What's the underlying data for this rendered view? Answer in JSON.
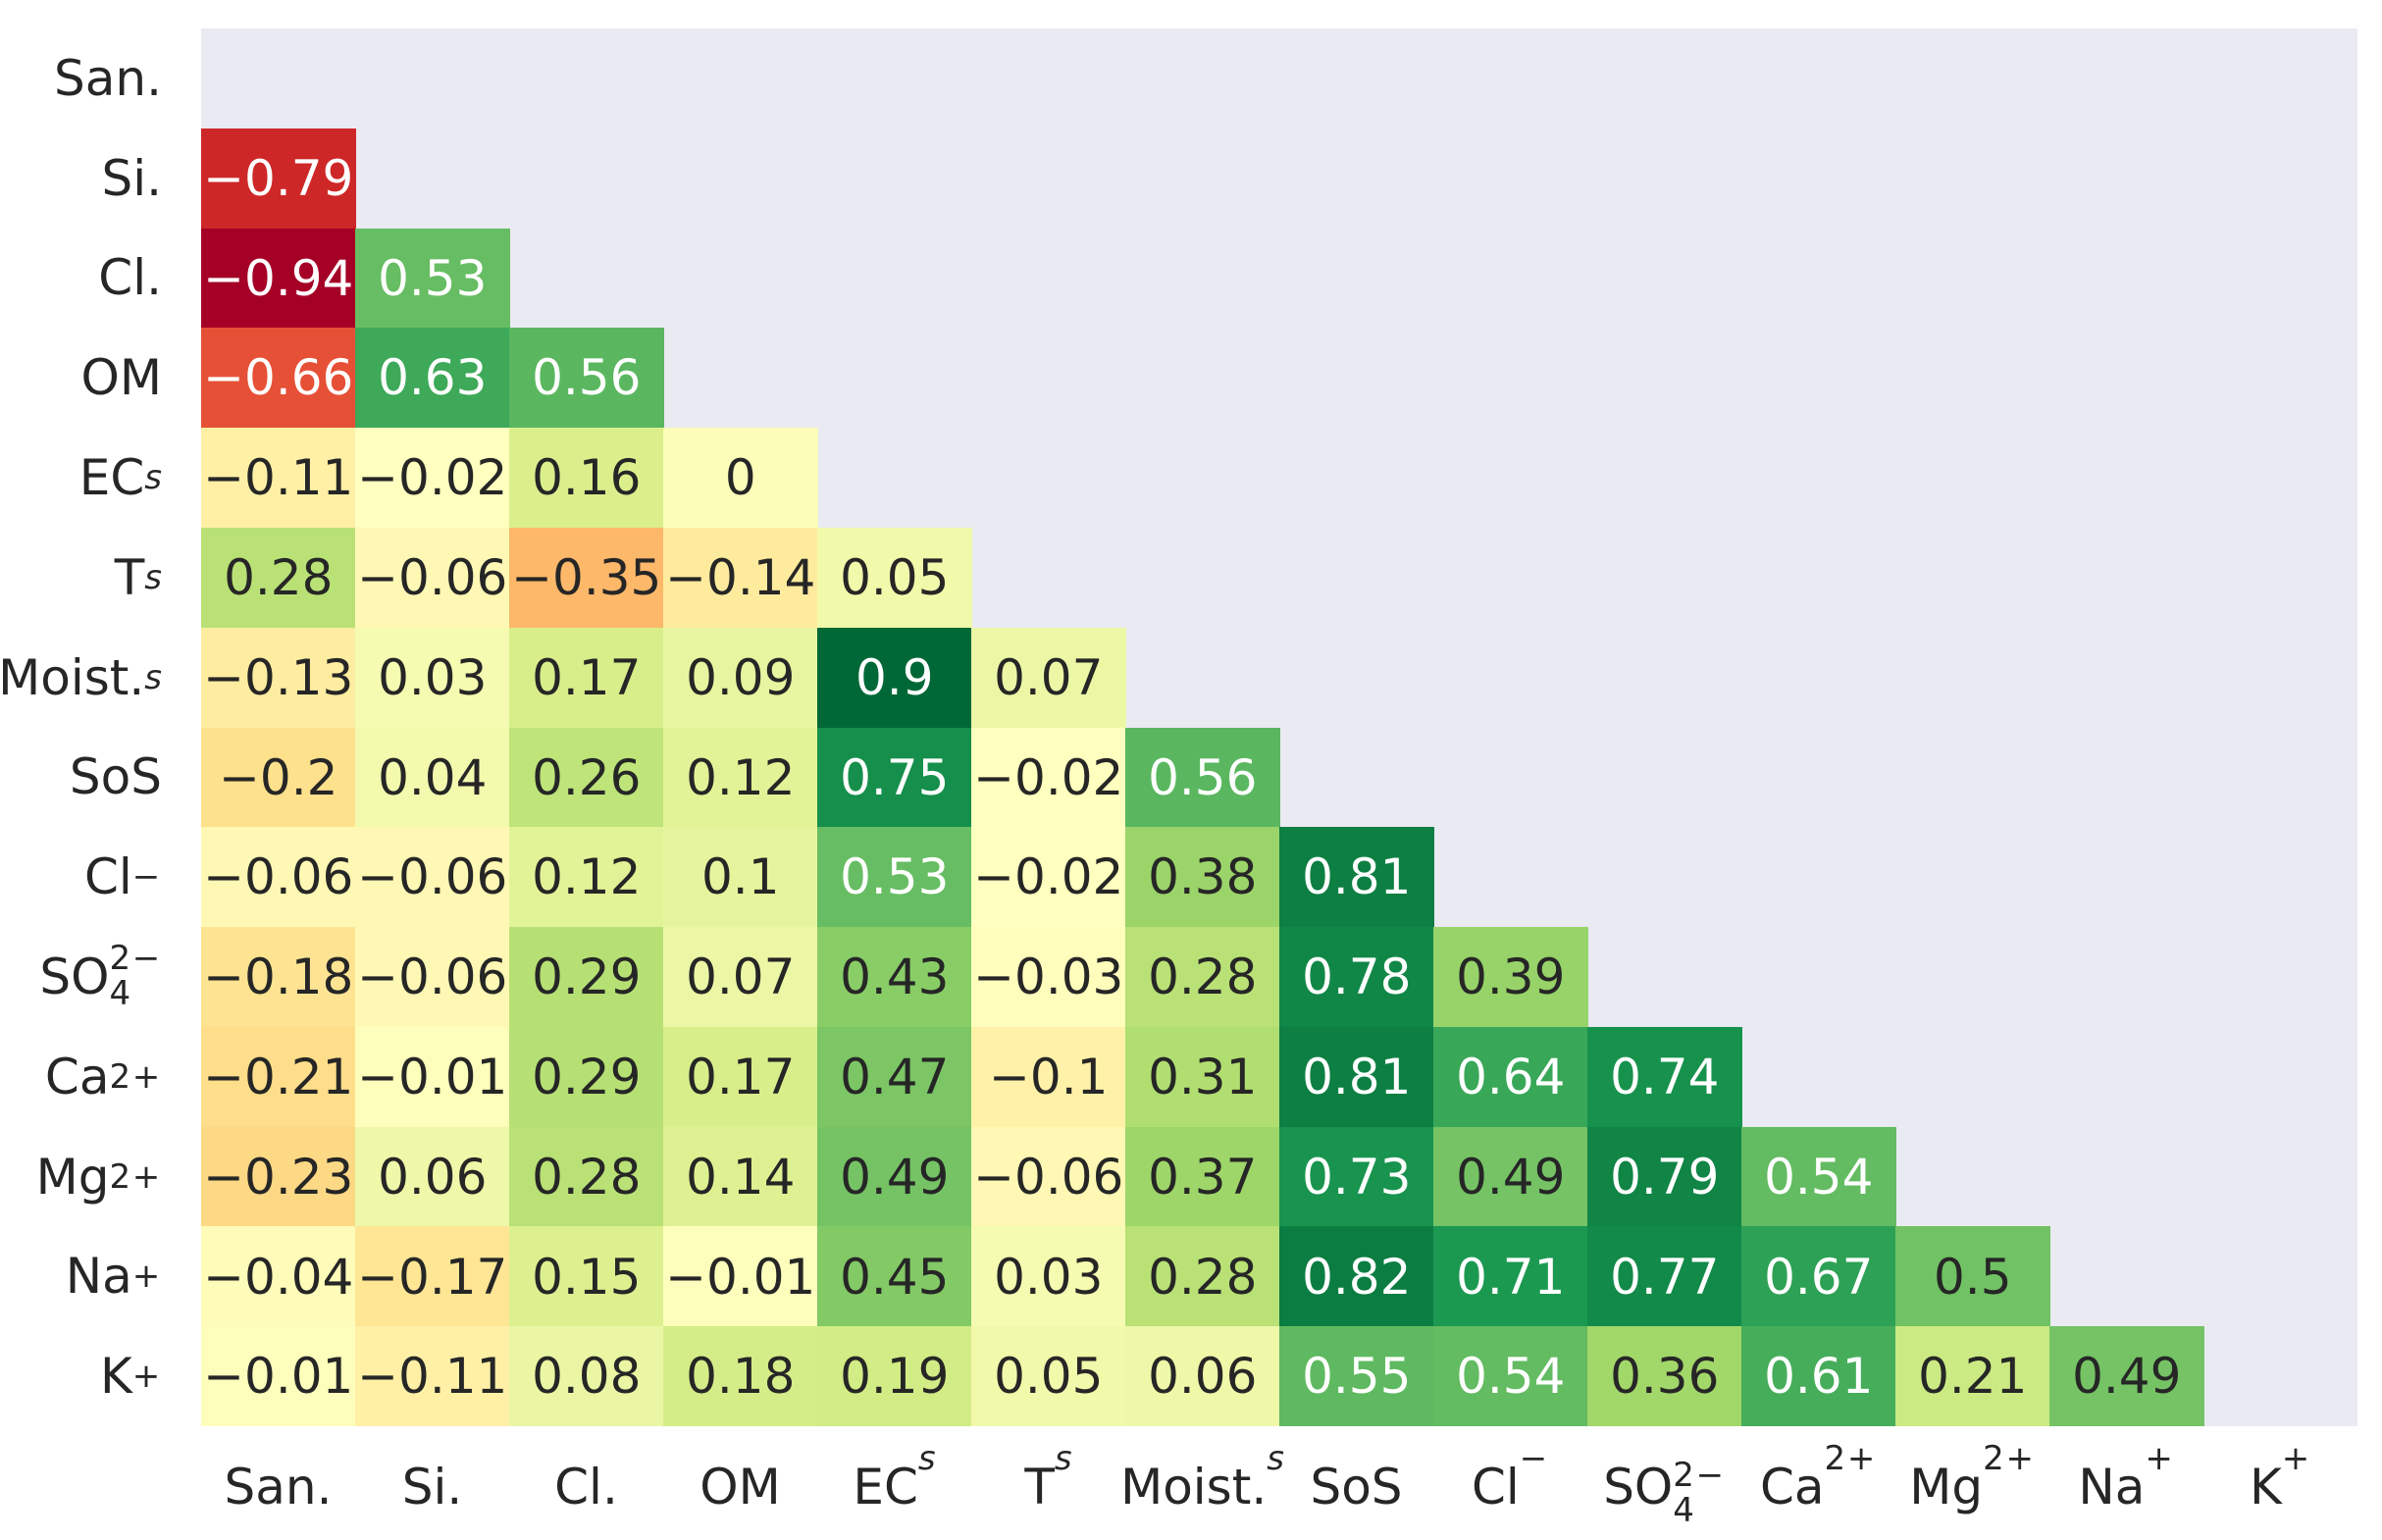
{
  "chart_data": {
    "type": "heatmap",
    "title": "",
    "xlabel": "",
    "ylabel": "",
    "legend": "none",
    "grid": false,
    "mask": "upper-triangle-and-diagonal",
    "annotation_format": ".2g",
    "categories": [
      "San.",
      "Si.",
      "Cl.",
      "OM",
      "EC_{s}",
      "T_{s}",
      "Moist._{s}",
      "SoS",
      "Cl^{−}",
      "SO_{4}^{2−}",
      "Ca^{2+}",
      "Mg^{2+}",
      "Na^{+}",
      "K^{+}"
    ],
    "rows": [
      [],
      [
        -0.79
      ],
      [
        -0.94,
        0.53
      ],
      [
        -0.66,
        0.63,
        0.56
      ],
      [
        -0.11,
        -0.02,
        0.16,
        0
      ],
      [
        0.28,
        -0.06,
        -0.35,
        -0.14,
        0.05
      ],
      [
        -0.13,
        0.03,
        0.17,
        0.09,
        0.9,
        0.07
      ],
      [
        -0.2,
        0.04,
        0.26,
        0.12,
        0.75,
        -0.02,
        0.56
      ],
      [
        -0.06,
        -0.06,
        0.12,
        0.1,
        0.53,
        -0.02,
        0.38,
        0.81
      ],
      [
        -0.18,
        -0.06,
        0.29,
        0.07,
        0.43,
        -0.03,
        0.28,
        0.78,
        0.39
      ],
      [
        -0.21,
        -0.01,
        0.29,
        0.17,
        0.47,
        -0.1,
        0.31,
        0.81,
        0.64,
        0.74
      ],
      [
        -0.23,
        0.06,
        0.28,
        0.14,
        0.49,
        -0.06,
        0.37,
        0.73,
        0.49,
        0.79,
        0.54
      ],
      [
        -0.04,
        -0.17,
        0.15,
        -0.01,
        0.45,
        0.03,
        0.28,
        0.82,
        0.71,
        0.77,
        0.67,
        0.5
      ],
      [
        -0.01,
        -0.11,
        0.08,
        0.18,
        0.19,
        0.05,
        0.06,
        0.55,
        0.54,
        0.36,
        0.61,
        0.21,
        0.49
      ]
    ],
    "colormap": {
      "name": "RdYlGn",
      "anchors": [
        "#a50026",
        "#d73027",
        "#f46d43",
        "#fdae61",
        "#fee08b",
        "#ffffbf",
        "#d9ef8b",
        "#a6d96a",
        "#66bd63",
        "#1a9850",
        "#006837"
      ],
      "vmin": -0.94,
      "vmax": 0.9
    },
    "style": {
      "axes_background": "#eaeaf2",
      "figure_background": "#ffffff",
      "annotation_color_dark": "#262626",
      "annotation_color_light": "#ffffff",
      "luminance_threshold": 0.408,
      "minus_glyph": "−"
    }
  }
}
